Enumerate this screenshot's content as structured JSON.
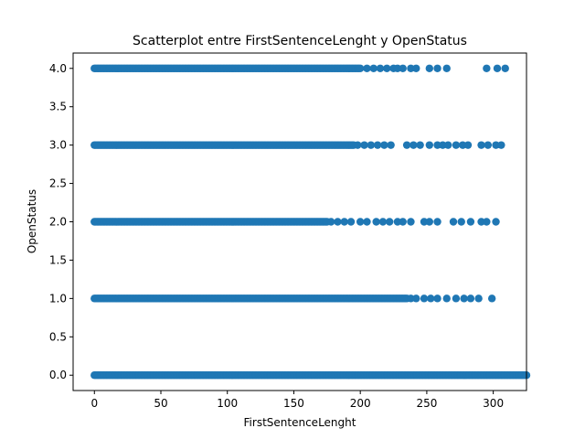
{
  "chart_data": {
    "type": "scatter",
    "title": "Scatterplot entre FirstSentenceLenght y OpenStatus",
    "xlabel": "FirstSentenceLenght",
    "ylabel": "OpenStatus",
    "xlim": [
      -16,
      325
    ],
    "ylim": [
      -0.2,
      4.2
    ],
    "xticks": [
      0,
      50,
      100,
      150,
      200,
      250,
      300
    ],
    "yticks": [
      0.0,
      0.5,
      1.0,
      1.5,
      2.0,
      2.5,
      3.0,
      3.5,
      4.0
    ],
    "xtick_labels": [
      "0",
      "50",
      "100",
      "150",
      "200",
      "250",
      "300"
    ],
    "ytick_labels": [
      "0.0",
      "0.5",
      "1.0",
      "1.5",
      "2.0",
      "2.5",
      "3.0",
      "3.5",
      "4.0"
    ],
    "grid": false,
    "marker_color": "#1f77b4",
    "series": [
      {
        "y": 4,
        "dense_range": [
          0,
          200
        ],
        "x_sparse": [
          205,
          210,
          215,
          220,
          225,
          228,
          232,
          238,
          242,
          252,
          258,
          265,
          295,
          303,
          309
        ]
      },
      {
        "y": 3,
        "dense_range": [
          0,
          195
        ],
        "x_sparse": [
          198,
          203,
          208,
          213,
          218,
          223,
          235,
          240,
          245,
          252,
          258,
          262,
          266,
          272,
          277,
          281,
          291,
          296,
          302,
          306
        ]
      },
      {
        "y": 2,
        "dense_range": [
          0,
          175
        ],
        "x_sparse": [
          178,
          183,
          188,
          193,
          200,
          205,
          212,
          217,
          222,
          228,
          232,
          238,
          248,
          252,
          258,
          270,
          276,
          283,
          291,
          295,
          302
        ]
      },
      {
        "y": 1,
        "dense_range": [
          0,
          235
        ],
        "x_sparse": [
          238,
          242,
          248,
          253,
          258,
          265,
          272,
          278,
          283,
          289,
          299
        ]
      },
      {
        "y": 0,
        "dense_range": [
          0,
          325
        ],
        "x_sparse": []
      }
    ]
  }
}
